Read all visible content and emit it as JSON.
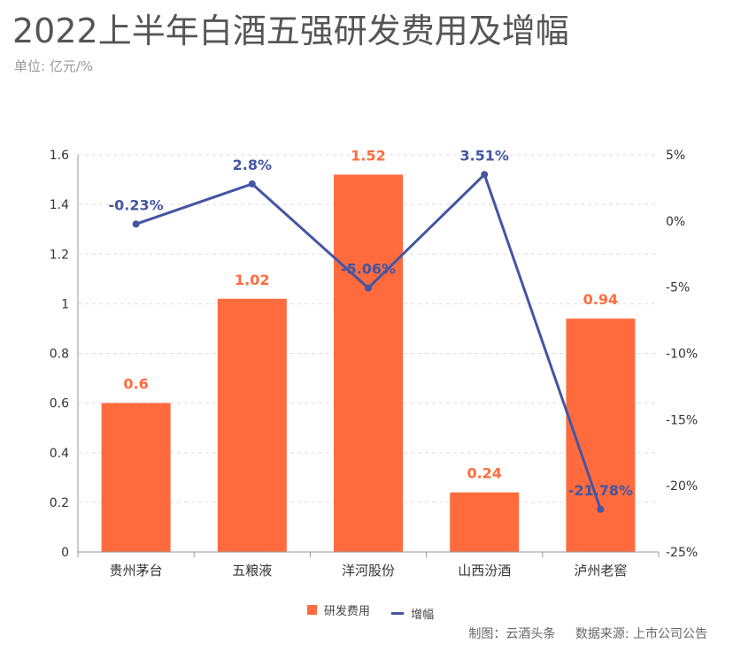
{
  "header": {
    "title": "2022上半年白酒五强研发费用及增幅",
    "unit": "单位: 亿元/%"
  },
  "footer": {
    "maker": "制图：云酒头条",
    "source": "数据来源: 上市公司公告"
  },
  "colors": {
    "bar": "#FF6B3D",
    "line": "#4455A3",
    "grid": "#dddddd",
    "axis": "#999999",
    "tick_text": "#333333"
  },
  "chart_data": {
    "type": "bar",
    "categories": [
      "贵州茅台",
      "五粮液",
      "洋河股份",
      "山西汾酒",
      "泸州老窖"
    ],
    "series": [
      {
        "name": "研发费用",
        "type": "bar",
        "axis": "left",
        "values": [
          0.6,
          1.02,
          1.52,
          0.24,
          0.94
        ],
        "labels": [
          "0.6",
          "1.02",
          "1.52",
          "0.24",
          "0.94"
        ]
      },
      {
        "name": "增幅",
        "type": "line",
        "axis": "right",
        "values": [
          -0.23,
          2.8,
          -5.06,
          3.51,
          -21.78
        ],
        "labels": [
          "-0.23%",
          "2.8%",
          "-5.06%",
          "3.51%",
          "-21.78%"
        ]
      }
    ],
    "y_left": {
      "range": [
        0,
        1.6
      ],
      "ticks": [
        0,
        0.2,
        0.4,
        0.6,
        0.8,
        1,
        1.2,
        1.4,
        1.6
      ],
      "tick_labels": [
        "0",
        "0.2",
        "0.4",
        "0.6",
        "0.8",
        "1",
        "1.2",
        "1.4",
        "1.6"
      ]
    },
    "y_right": {
      "range": [
        -25,
        5
      ],
      "ticks": [
        -25,
        -20,
        -15,
        -10,
        -5,
        0,
        5
      ],
      "tick_labels": [
        "-25%",
        "-20%",
        "-15%",
        "-10%",
        "-5%",
        "0%",
        "5%"
      ]
    },
    "grid": true,
    "legend_position": "bottom"
  }
}
